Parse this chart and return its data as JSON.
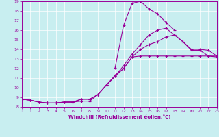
{
  "xlabel": "Windchill (Refroidissement éolien,°C)",
  "background_color": "#c8eef0",
  "line_color": "#990099",
  "xlim": [
    0,
    23
  ],
  "ylim": [
    8,
    19
  ],
  "xticks": [
    0,
    1,
    2,
    3,
    4,
    5,
    6,
    7,
    8,
    9,
    10,
    11,
    12,
    13,
    14,
    15,
    16,
    17,
    18,
    19,
    20,
    21,
    22,
    23
  ],
  "yticks": [
    8,
    9,
    10,
    11,
    12,
    13,
    14,
    15,
    16,
    17,
    18,
    19
  ],
  "line1_x": [
    0,
    1,
    2,
    3,
    4,
    5,
    6,
    7,
    8,
    9,
    10,
    11,
    12,
    13,
    14,
    15,
    16,
    17,
    18,
    19,
    20,
    21,
    22,
    23
  ],
  "line1_y": [
    8.8,
    8.7,
    8.5,
    8.4,
    8.4,
    8.5,
    8.5,
    8.6,
    8.6,
    9.3,
    10.3,
    11.3,
    12.0,
    13.2,
    13.3,
    13.3,
    13.3,
    13.3,
    13.3,
    13.3,
    13.3,
    13.3,
    13.3,
    13.3
  ],
  "line2_x": [
    0,
    1,
    2,
    3,
    4,
    5,
    6,
    7,
    8,
    9,
    10,
    11,
    12,
    13,
    14,
    15,
    16,
    17,
    18,
    19,
    20,
    21,
    22,
    23
  ],
  "line2_y": [
    8.8,
    8.7,
    8.5,
    8.4,
    8.4,
    8.5,
    8.5,
    8.8,
    8.8,
    9.3,
    10.3,
    11.2,
    12.0,
    13.2,
    14.0,
    14.5,
    14.8,
    15.3,
    15.5,
    14.8,
    14.0,
    14.0,
    13.9,
    13.3
  ],
  "line3_x": [
    0,
    1,
    2,
    3,
    4,
    5,
    6,
    7,
    8,
    9,
    10,
    11,
    12,
    13,
    14,
    15,
    16,
    17,
    18,
    19,
    20,
    21,
    22,
    23
  ],
  "line3_y": [
    8.8,
    8.7,
    8.5,
    8.4,
    8.4,
    8.5,
    8.5,
    8.8,
    8.8,
    9.3,
    10.3,
    11.2,
    12.3,
    13.5,
    14.5,
    15.5,
    16.0,
    16.2,
    15.5,
    14.8,
    13.9,
    13.9,
    13.3,
    13.2
  ],
  "line4_x": [
    11,
    12,
    13,
    14,
    15,
    16,
    17,
    18
  ],
  "line4_y": [
    12.1,
    16.5,
    18.8,
    19.0,
    18.2,
    17.7,
    16.8,
    16.0
  ]
}
